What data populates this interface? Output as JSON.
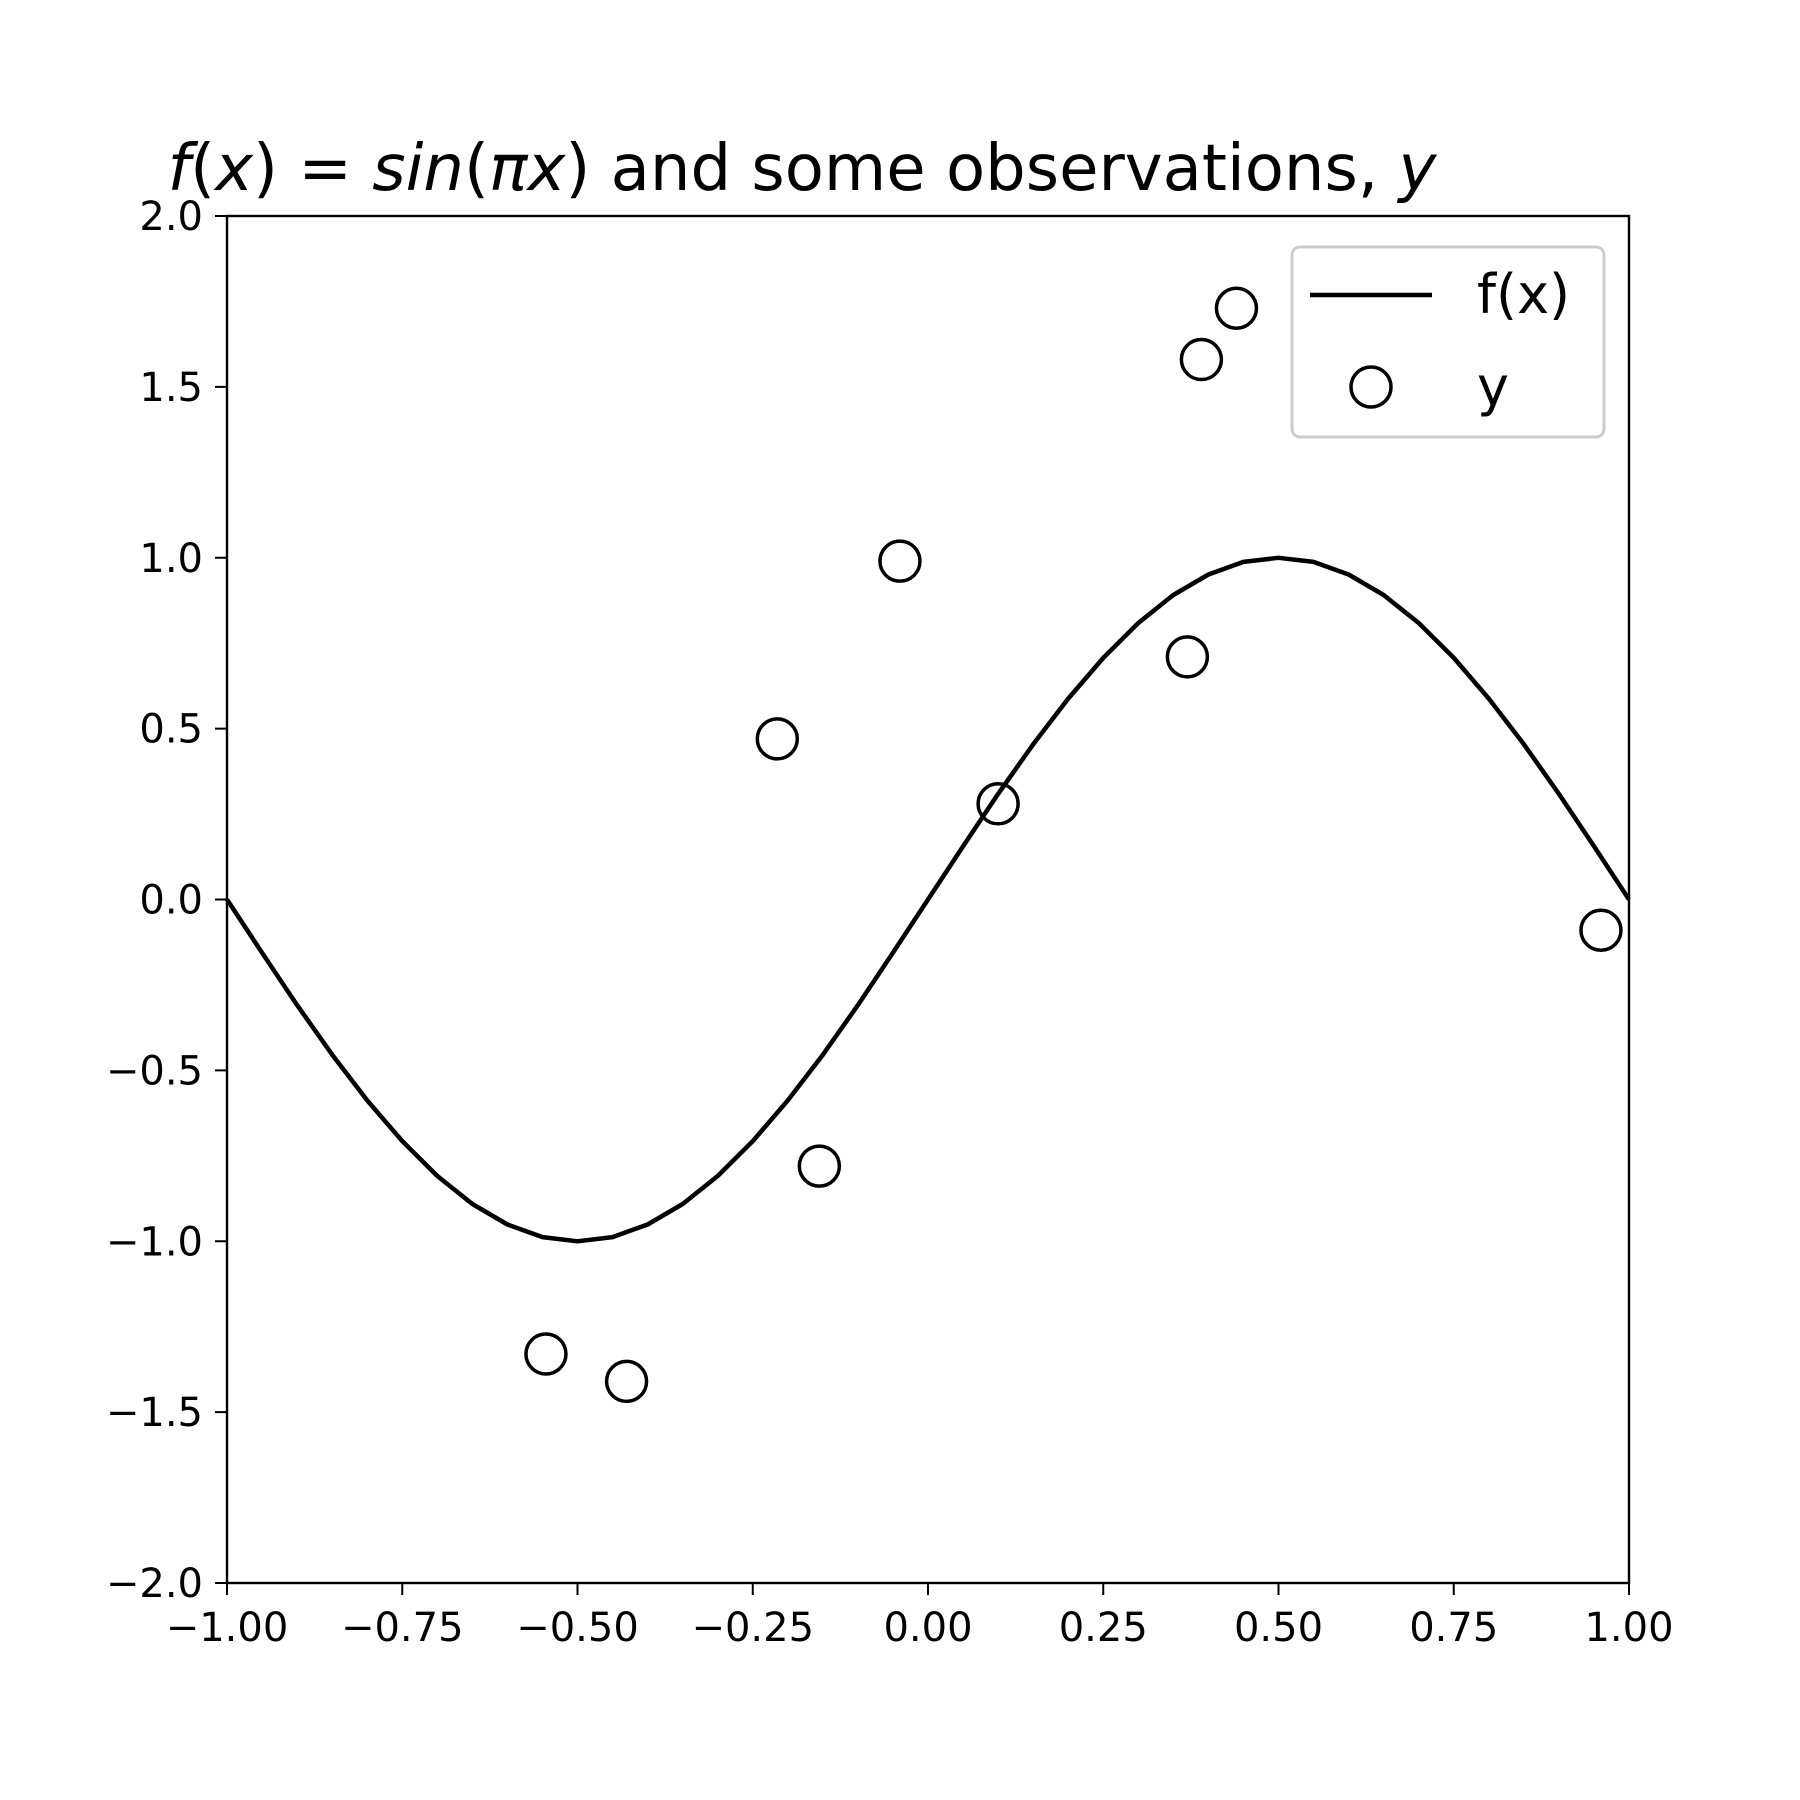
{
  "chart_data": {
    "type": "line",
    "title": {
      "parts": [
        {
          "text": "f",
          "italic": true
        },
        {
          "text": "(",
          "italic": false
        },
        {
          "text": "x",
          "italic": true
        },
        {
          "text": ") = ",
          "italic": false
        },
        {
          "text": "sin",
          "italic": true
        },
        {
          "text": "(",
          "italic": false
        },
        {
          "text": "πx",
          "italic": true
        },
        {
          "text": ") and some observations, ",
          "italic": false
        },
        {
          "text": "y",
          "italic": true
        }
      ]
    },
    "xlabel": "",
    "ylabel": "",
    "xlim": [
      -1.0,
      1.0
    ],
    "ylim": [
      -2.0,
      2.0
    ],
    "x_ticks": [
      -1.0,
      -0.75,
      -0.5,
      -0.25,
      0.0,
      0.25,
      0.5,
      0.75,
      1.0
    ],
    "x_tick_labels": [
      "−1.00",
      "−0.75",
      "−0.50",
      "−0.25",
      "0.00",
      "0.25",
      "0.50",
      "0.75",
      "1.00"
    ],
    "y_ticks": [
      2.0,
      1.5,
      1.0,
      0.5,
      0.0,
      -0.5,
      -1.0,
      -1.5,
      -2.0
    ],
    "y_tick_labels": [
      "2.0",
      "1.5",
      "1.0",
      "0.5",
      "0.0",
      "−0.5",
      "−1.0",
      "−1.5",
      "−2.0"
    ],
    "grid": false,
    "legend_position": "top-right",
    "series": [
      {
        "name": "f(x)",
        "kind": "line",
        "function": "sin(pi*x)",
        "x": [
          -1.0,
          -0.95,
          -0.9,
          -0.85,
          -0.8,
          -0.75,
          -0.7,
          -0.65,
          -0.6,
          -0.55,
          -0.5,
          -0.45,
          -0.4,
          -0.35,
          -0.3,
          -0.25,
          -0.2,
          -0.15,
          -0.1,
          -0.05,
          0.0,
          0.05,
          0.1,
          0.15,
          0.2,
          0.25,
          0.3,
          0.35,
          0.4,
          0.45,
          0.5,
          0.55,
          0.6,
          0.65,
          0.7,
          0.75,
          0.8,
          0.85,
          0.9,
          0.95,
          1.0
        ],
        "y": [
          0.0,
          -0.156,
          -0.309,
          -0.454,
          -0.588,
          -0.707,
          -0.809,
          -0.891,
          -0.951,
          -0.988,
          -1.0,
          -0.988,
          -0.951,
          -0.891,
          -0.809,
          -0.707,
          -0.588,
          -0.454,
          -0.309,
          -0.156,
          0.0,
          0.156,
          0.309,
          0.454,
          0.588,
          0.707,
          0.809,
          0.891,
          0.951,
          0.988,
          1.0,
          0.988,
          0.951,
          0.891,
          0.809,
          0.707,
          0.588,
          0.454,
          0.309,
          0.156,
          0.0
        ],
        "color": "#000000"
      },
      {
        "name": "y",
        "kind": "scatter",
        "marker": "hollow-circle",
        "x": [
          -0.545,
          -0.43,
          -0.215,
          -0.155,
          -0.04,
          0.1,
          0.37,
          0.39,
          0.44,
          0.96
        ],
        "y": [
          -1.33,
          -1.41,
          0.47,
          -0.78,
          0.99,
          0.28,
          0.71,
          1.58,
          1.73,
          -0.09
        ],
        "color": "#000000"
      }
    ]
  }
}
